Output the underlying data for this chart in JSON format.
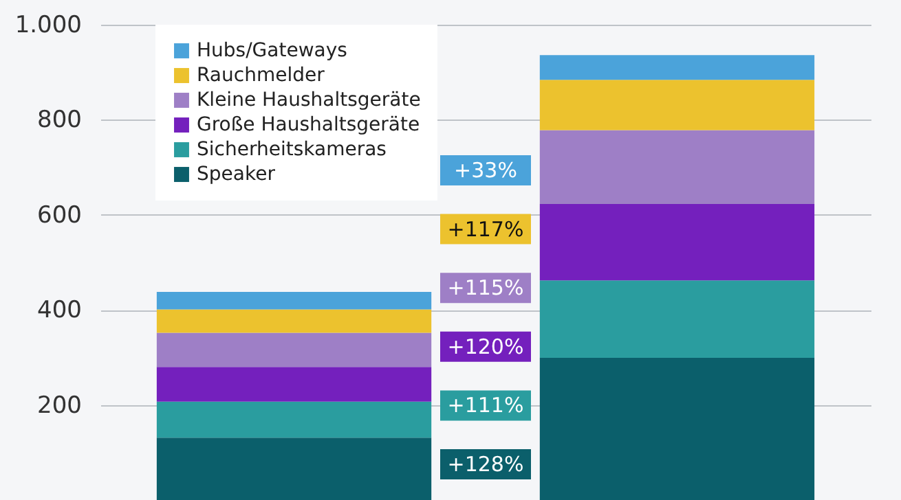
{
  "chart_data": {
    "type": "bar",
    "stacked": true,
    "categories": [
      null,
      null
    ],
    "series": [
      {
        "name": "Speaker",
        "color": "#0b5f6b",
        "values": [
          131,
          299
        ]
      },
      {
        "name": "Sicherheitskameras",
        "color": "#2a9d9f",
        "values": [
          76,
          163
        ]
      },
      {
        "name": "Große Haushaltsgeräte",
        "color": "#7420bd",
        "values": [
          73,
          161
        ]
      },
      {
        "name": "Kleine Haushaltsgeräte",
        "color": "#9e7fc6",
        "values": [
          72,
          155
        ]
      },
      {
        "name": "Rauchmelder",
        "color": "#ecc22e",
        "values": [
          49,
          106
        ]
      },
      {
        "name": "Hubs/Gateways",
        "color": "#4ba3da",
        "values": [
          37,
          52
        ]
      }
    ],
    "annotations": [
      "+33%",
      "+117%",
      "+115%",
      "+120%",
      "+111%",
      "+128%"
    ],
    "ylim": [
      0,
      1000
    ],
    "yticks": [
      200,
      400,
      600,
      800,
      {
        "value": 1000,
        "label": "1.000"
      }
    ],
    "grid": "y",
    "legend": "top left",
    "tick_labels": "y"
  }
}
